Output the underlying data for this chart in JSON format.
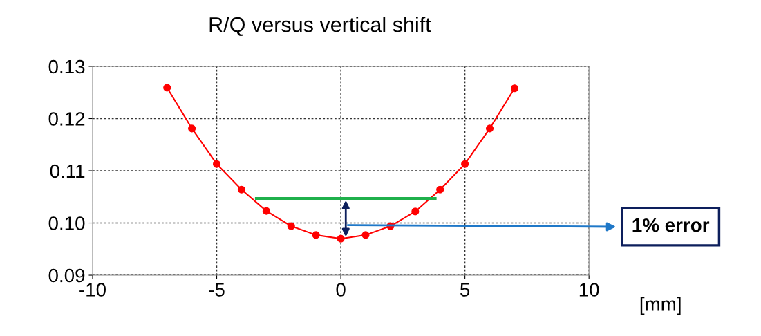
{
  "chart_data": {
    "type": "line",
    "title": "R/Q versus vertical shift",
    "xlabel": "[mm]",
    "xlim": [
      -10,
      10
    ],
    "xticks": [
      -10,
      -5,
      0,
      5,
      10
    ],
    "ylim": [
      0.09,
      0.13
    ],
    "yticks": [
      {
        "value": 0.09,
        "label": "0.09"
      },
      {
        "value": 0.1,
        "label": "0.10"
      },
      {
        "value": 0.11,
        "label": "0.11"
      },
      {
        "value": 0.12,
        "label": "0.12"
      },
      {
        "value": 0.13,
        "label": "0.13"
      }
    ],
    "grid": true,
    "legend": false,
    "series": [
      {
        "color": "#ff0000",
        "marker": "circle",
        "x": [
          -7,
          -6,
          -5,
          -4,
          -3,
          -2,
          -1,
          0,
          1,
          2,
          3,
          4,
          5,
          6,
          7
        ],
        "values": [
          0.1259,
          0.1181,
          0.1113,
          0.1064,
          0.1023,
          0.0994,
          0.0977,
          0.097,
          0.0977,
          0.0994,
          0.1022,
          0.1064,
          0.1113,
          0.1181,
          0.1258
        ]
      },
      {
        "color": "#1fb04b",
        "marker": "none",
        "x": [
          -3.4,
          3.8
        ],
        "values": [
          0.1047,
          0.1047
        ]
      }
    ],
    "annotations": [
      "1% error"
    ]
  }
}
